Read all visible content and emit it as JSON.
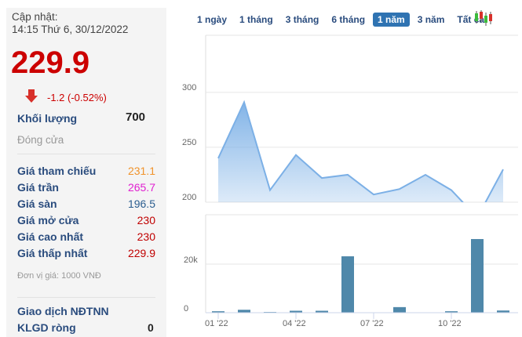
{
  "quote": {
    "updated_label": "Cập nhật:",
    "updated_time": "14:15 Thứ 6, 30/12/2022",
    "price": "229.9",
    "change": "-1.2 (-0.52%)",
    "volume_label": "Khối lượng",
    "volume_value": "700",
    "status": "Đóng cửa",
    "rows": [
      {
        "label": "Giá tham chiếu",
        "value": "231.1",
        "color": "#f0932b"
      },
      {
        "label": "Giá trần",
        "value": "265.7",
        "color": "#e020d0"
      },
      {
        "label": "Giá sàn",
        "value": "196.5",
        "color": "#2a5d8f"
      },
      {
        "label": "Giá mở cửa",
        "value": "230",
        "color": "#c00000"
      },
      {
        "label": "Giá cao nhất",
        "value": "230",
        "color": "#c00000"
      },
      {
        "label": "Giá thấp nhất",
        "value": "229.9",
        "color": "#c00000"
      }
    ],
    "unit_note": "Đơn vị giá: 1000 VNĐ",
    "foreign_title": "Giao dịch NĐTNN",
    "net_label": "KLGD ròng",
    "net_value": "0"
  },
  "tabs": [
    "1 ngày",
    "1 tháng",
    "3 tháng",
    "6 tháng",
    "1 năm",
    "3 năm",
    "Tất cả"
  ],
  "active_tab": "1 năm",
  "chart_data": [
    {
      "type": "area",
      "x": [
        "01 '22",
        "02 '22",
        "03 '22",
        "04 '22",
        "05 '22",
        "06 '22",
        "07 '22",
        "08 '22",
        "09 '22",
        "10 '22",
        "11 '22",
        "12 '22"
      ],
      "values": [
        240,
        291,
        211,
        243,
        222,
        225,
        207,
        212,
        225,
        211,
        186,
        229.9
      ],
      "ylim": [
        200,
        352
      ],
      "yticks": [
        "200",
        "250",
        "300"
      ],
      "grid": true,
      "color": "#7cb0e6"
    },
    {
      "type": "bar",
      "x": [
        "01 '22",
        "02 '22",
        "03 '22",
        "04 '22",
        "05 '22",
        "06 '22",
        "07 '22",
        "08 '22",
        "09 '22",
        "10 '22",
        "11 '22",
        "12 '22"
      ],
      "values": [
        600,
        1200,
        300,
        800,
        800,
        23200,
        0,
        2300,
        0,
        600,
        30300,
        900
      ],
      "ylim": [
        0,
        40300
      ],
      "yticks": [
        "0",
        "20k"
      ],
      "xticks": [
        "01 '22",
        "04 '22",
        "07 '22",
        "10 '22"
      ],
      "grid": true,
      "color": "#4f88aa"
    }
  ]
}
